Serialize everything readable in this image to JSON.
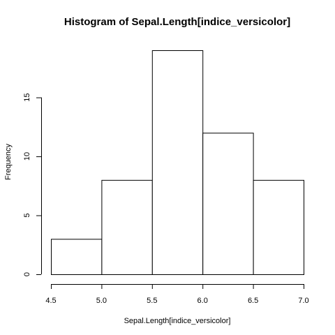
{
  "chart_data": {
    "type": "bar",
    "title": "Histogram of Sepal.Length[indice_versicolor]",
    "xlabel": "Sepal.Length[indice_versicolor]",
    "ylabel": "Frequency",
    "bins": [
      {
        "from": 4.5,
        "to": 5.0,
        "count": 3
      },
      {
        "from": 5.0,
        "to": 5.5,
        "count": 8
      },
      {
        "from": 5.5,
        "to": 6.0,
        "count": 19
      },
      {
        "from": 6.0,
        "to": 6.5,
        "count": 12
      },
      {
        "from": 6.5,
        "to": 7.0,
        "count": 8
      }
    ],
    "xlim": [
      4.5,
      7.0
    ],
    "ylim": [
      0,
      19
    ],
    "x_ticks": [
      "4.5",
      "5.0",
      "5.5",
      "6.0",
      "6.5",
      "7.0"
    ],
    "y_ticks": [
      "0",
      "5",
      "10",
      "15"
    ],
    "grid": false,
    "colors": {
      "bar_fill": "#ffffff",
      "bar_stroke": "#000000"
    }
  }
}
